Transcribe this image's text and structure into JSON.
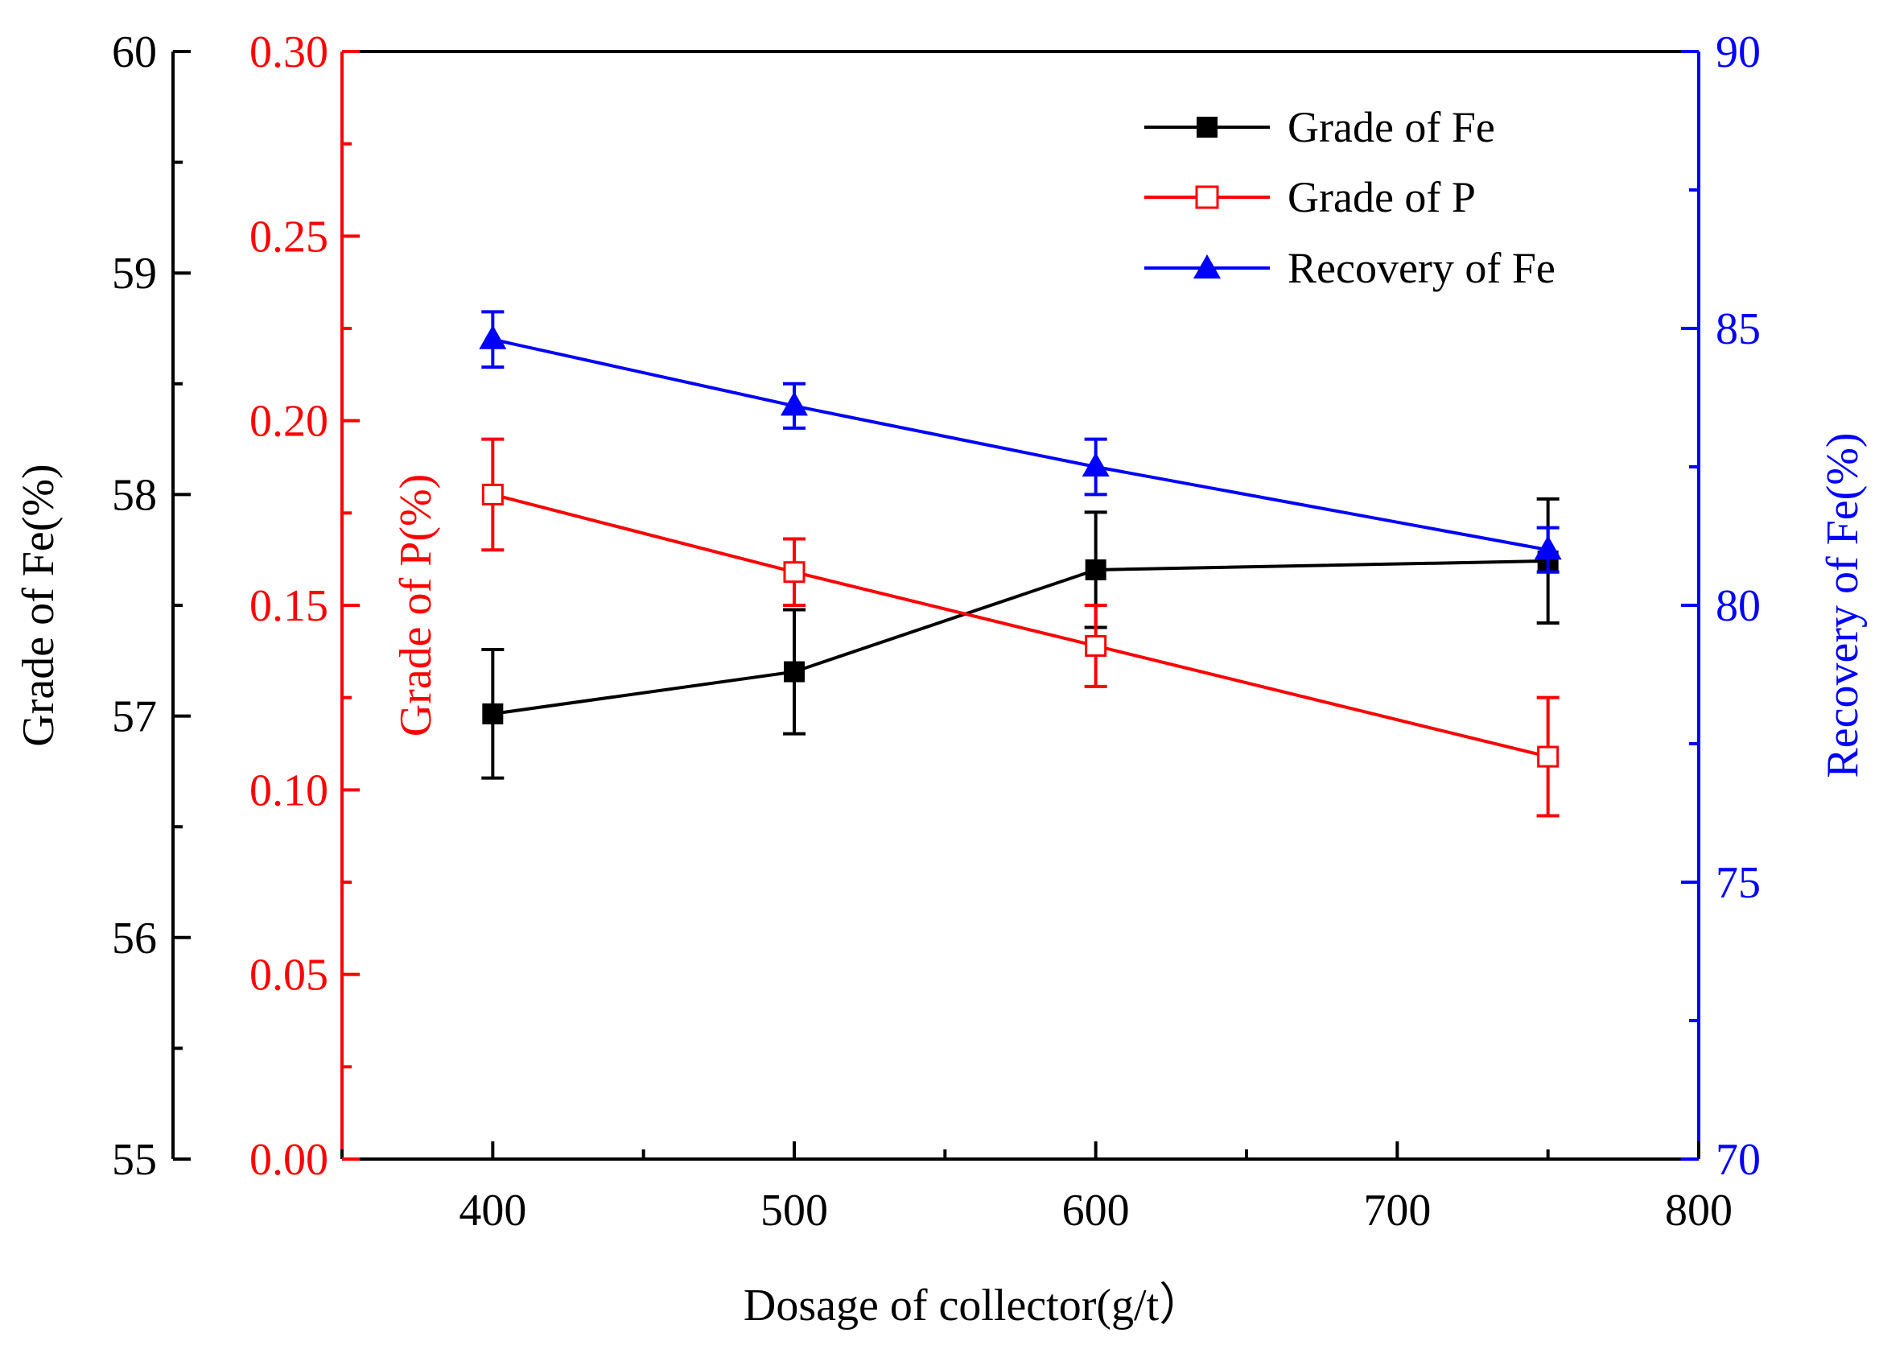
{
  "chart_data": {
    "type": "line",
    "title": "",
    "xlabel": "Dosage of collector(g/t）",
    "xlim": [
      350,
      800
    ],
    "x_ticks": [
      400,
      500,
      600,
      700,
      800
    ],
    "x_tick_labels": [
      "400",
      "500",
      "600",
      "700",
      "800"
    ],
    "x": [
      400,
      500,
      600,
      750
    ],
    "axes": {
      "fe_grade": {
        "label": "Grade of  Fe(%)",
        "color": "#000000",
        "ylim": [
          55,
          60
        ],
        "ticks": [
          55,
          56,
          57,
          58,
          59,
          60
        ],
        "tick_labels": [
          "55",
          "56",
          "57",
          "58",
          "59",
          "60"
        ]
      },
      "p_grade": {
        "label": "Grade of  P(%)",
        "color": "#ff0000",
        "ylim": [
          0,
          0.3
        ],
        "ticks": [
          0,
          0.05,
          0.1,
          0.15,
          0.2,
          0.25,
          0.3
        ],
        "tick_labels": [
          "0.00",
          "0.05",
          "0.10",
          "0.15",
          "0.20",
          "0.25",
          "0.30"
        ]
      },
      "fe_recovery": {
        "label": "Recovery of  Fe(%)",
        "color": "#0000ff",
        "ylim": [
          70,
          90
        ],
        "ticks": [
          70,
          75,
          80,
          85,
          90
        ],
        "tick_labels": [
          "70",
          "75",
          "80",
          "85",
          "90"
        ]
      }
    },
    "series": [
      {
        "name": "Grade of  Fe",
        "axis": "fe_grade",
        "color": "#000000",
        "marker": "filled-square",
        "values": [
          57.01,
          57.2,
          57.66,
          57.7
        ],
        "errors": [
          0.29,
          0.28,
          0.26,
          0.28
        ]
      },
      {
        "name": "Grade of  P",
        "axis": "p_grade",
        "color": "#ff0000",
        "marker": "open-square",
        "values": [
          0.18,
          0.159,
          0.139,
          0.109
        ],
        "errors": [
          0.015,
          0.009,
          0.011,
          0.016
        ]
      },
      {
        "name": "Recovery of  Fe",
        "axis": "fe_recovery",
        "color": "#0000ff",
        "marker": "filled-triangle",
        "values": [
          84.8,
          83.6,
          82.5,
          81.0
        ],
        "errors": [
          0.5,
          0.4,
          0.5,
          0.4
        ]
      }
    ],
    "legend": {
      "position": "top-right",
      "entries": [
        "Grade of  Fe",
        "Grade of  P",
        "Recovery of  Fe"
      ]
    }
  }
}
